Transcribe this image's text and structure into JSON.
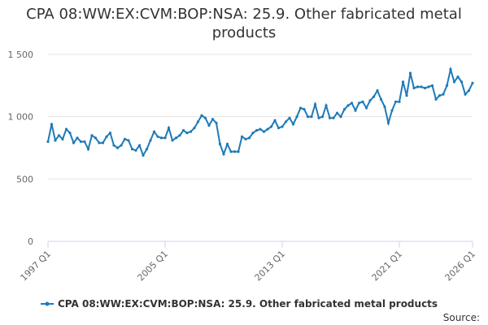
{
  "chart_data": {
    "type": "line",
    "title": "CPA 08:WW:EX:CVM:BOP:NSA: 25.9. Other fabricated metal products",
    "source_label": "Source:",
    "categories": [
      "1997 Q1",
      null,
      null,
      null,
      null,
      null,
      null,
      null,
      null,
      null,
      null,
      null,
      null,
      null,
      null,
      null,
      null,
      null,
      null,
      null,
      null,
      null,
      null,
      null,
      null,
      null,
      null,
      null,
      null,
      null,
      null,
      null,
      "2005 Q1",
      null,
      null,
      null,
      null,
      null,
      null,
      null,
      null,
      null,
      null,
      null,
      null,
      null,
      null,
      null,
      null,
      null,
      null,
      null,
      null,
      null,
      null,
      null,
      null,
      null,
      null,
      null,
      null,
      null,
      null,
      null,
      "2013 Q1",
      null,
      null,
      null,
      null,
      null,
      null,
      null,
      null,
      null,
      null,
      null,
      null,
      null,
      null,
      null,
      null,
      null,
      null,
      null,
      null,
      null,
      null,
      null,
      null,
      null,
      null,
      null,
      null,
      null,
      null,
      null,
      "2021 Q1",
      null,
      null,
      null,
      null,
      null,
      null,
      null,
      null,
      null,
      null,
      null,
      null,
      null,
      null,
      null,
      null,
      null,
      null,
      null,
      "2026 Q1"
    ],
    "series": [
      {
        "name": "CPA 08:WW:EX:CVM:BOP:NSA: 25.9. Other fabricated metal products",
        "color": "#1f7ab8",
        "values": [
          800,
          940,
          810,
          850,
          820,
          900,
          870,
          790,
          830,
          800,
          800,
          740,
          850,
          830,
          790,
          790,
          840,
          870,
          770,
          750,
          770,
          820,
          810,
          740,
          730,
          770,
          690,
          740,
          810,
          880,
          840,
          830,
          830,
          910,
          810,
          830,
          850,
          890,
          870,
          880,
          910,
          960,
          1010,
          990,
          930,
          980,
          950,
          780,
          700,
          780,
          720,
          720,
          720,
          840,
          820,
          830,
          870,
          890,
          900,
          880,
          900,
          920,
          970,
          910,
          920,
          960,
          990,
          940,
          1000,
          1070,
          1060,
          1000,
          1000,
          1100,
          990,
          1000,
          1090,
          990,
          990,
          1030,
          1000,
          1060,
          1090,
          1110,
          1050,
          1110,
          1120,
          1070,
          1130,
          1160,
          1210,
          1140,
          1080,
          950,
          1050,
          1120,
          1120,
          1280,
          1170,
          1350,
          1230,
          1240,
          1240,
          1230,
          1240,
          1250,
          1140,
          1170,
          1180,
          1250,
          1380,
          1280,
          1320,
          1280,
          1180,
          1210,
          1270
        ]
      }
    ],
    "ylim": [
      0,
      1500
    ],
    "yticks": [
      0,
      500,
      {
        "value": 1000,
        "label": "1 000"
      },
      {
        "value": 1500,
        "label": "1 500"
      }
    ],
    "grid": true
  }
}
